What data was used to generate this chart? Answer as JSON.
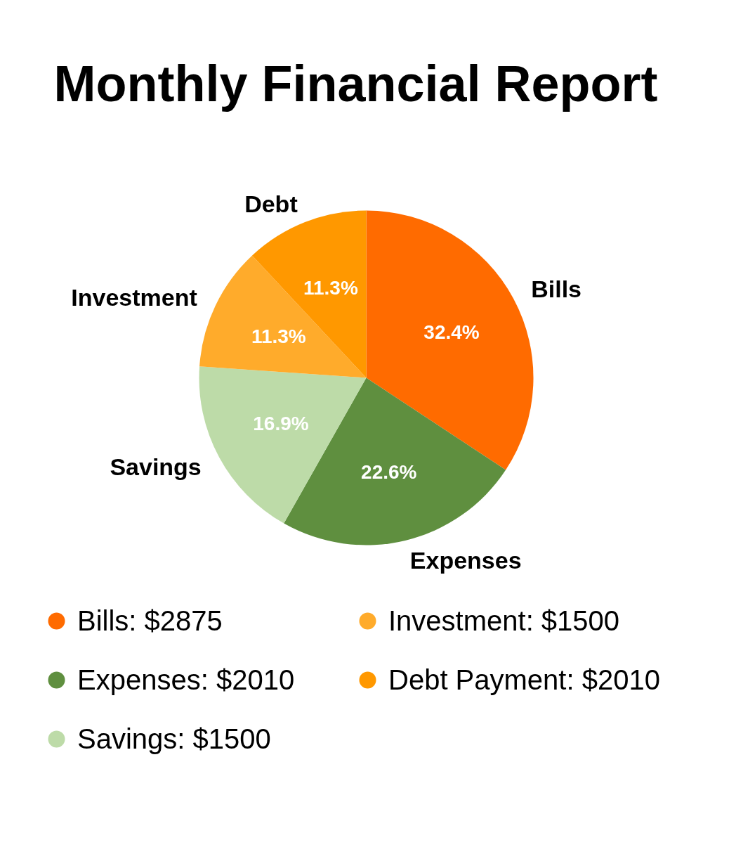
{
  "chart_data": {
    "type": "pie",
    "title": "Monthly Financial Report",
    "categories": [
      "Bills: $2875",
      "Expenses: $2010",
      "Savings: $1500",
      "Investment: $1500",
      "Debt Payment: $2010"
    ],
    "values": [
      32.4,
      22.6,
      16.9,
      11.3,
      11.3
    ],
    "colors": [
      "#ff6b00",
      "#5f8f3f",
      "#bddba8",
      "#ffab2b",
      "#ff9800"
    ],
    "value_labels": [
      "32.4%",
      "22.6%",
      "16.9%",
      "11.3%",
      "11.3%"
    ],
    "legend": "bottom",
    "annotations": [
      "Bills",
      "Expenses",
      "Savings",
      "Investment",
      "Debt"
    ]
  }
}
